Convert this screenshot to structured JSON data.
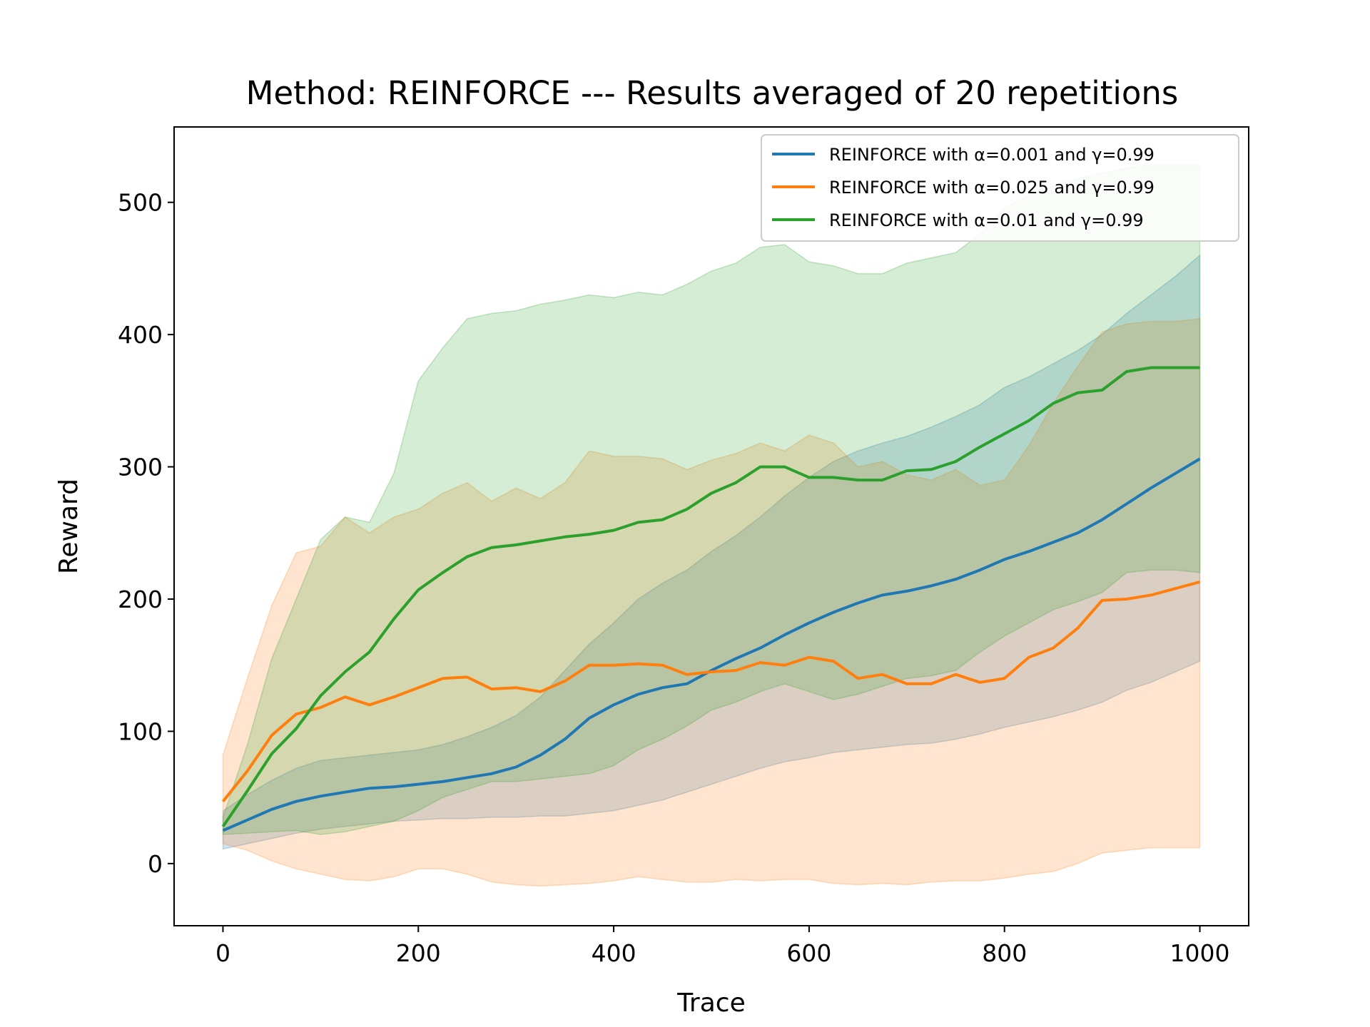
{
  "chart_data": {
    "type": "line",
    "title": "Method: REINFORCE --- Results averaged of 20 repetitions",
    "xlabel": "Trace",
    "ylabel": "Reward",
    "xlim": [
      -50,
      1050
    ],
    "ylim": [
      -47,
      557
    ],
    "xticks": [
      0,
      200,
      400,
      600,
      800,
      1000
    ],
    "yticks": [
      0,
      100,
      200,
      300,
      400,
      500
    ],
    "legend_position": "top-right",
    "series": [
      {
        "name": "REINFORCE with α=0.001 and γ=0.99",
        "color": "#1f77b4",
        "x": [
          0,
          25,
          50,
          75,
          100,
          125,
          150,
          175,
          200,
          225,
          250,
          275,
          300,
          325,
          350,
          375,
          400,
          425,
          450,
          475,
          500,
          525,
          550,
          575,
          600,
          625,
          650,
          675,
          700,
          725,
          750,
          775,
          800,
          825,
          850,
          875,
          900,
          925,
          950,
          975,
          1000
        ],
        "mean": [
          25,
          33,
          41,
          47,
          51,
          54,
          57,
          58,
          60,
          62,
          65,
          68,
          73,
          82,
          94,
          110,
          120,
          128,
          133,
          136,
          146,
          155,
          163,
          173,
          182,
          190,
          197,
          203,
          206,
          210,
          215,
          222,
          230,
          236,
          243,
          250,
          260,
          272,
          284,
          295,
          306
        ],
        "lower": [
          11,
          15,
          19,
          23,
          26,
          28,
          30,
          32,
          33,
          34,
          34,
          35,
          35,
          36,
          36,
          38,
          40,
          44,
          48,
          54,
          60,
          66,
          72,
          77,
          80,
          84,
          86,
          88,
          90,
          91,
          94,
          98,
          103,
          107,
          111,
          116,
          122,
          131,
          137,
          145,
          153
        ],
        "upper": [
          40,
          52,
          63,
          72,
          78,
          80,
          82,
          84,
          86,
          90,
          96,
          103,
          112,
          126,
          146,
          166,
          182,
          200,
          212,
          222,
          236,
          248,
          262,
          278,
          292,
          304,
          312,
          318,
          323,
          330,
          338,
          347,
          360,
          368,
          378,
          388,
          400,
          416,
          430,
          444,
          460
        ]
      },
      {
        "name": "REINFORCE with α=0.025 and γ=0.99",
        "color": "#ff7f0e",
        "x": [
          0,
          25,
          50,
          75,
          100,
          125,
          150,
          175,
          200,
          225,
          250,
          275,
          300,
          325,
          350,
          375,
          400,
          425,
          450,
          475,
          500,
          525,
          550,
          575,
          600,
          625,
          650,
          675,
          700,
          725,
          750,
          775,
          800,
          825,
          850,
          875,
          900,
          925,
          950,
          975,
          1000
        ],
        "mean": [
          47,
          70,
          97,
          113,
          118,
          126,
          120,
          126,
          133,
          140,
          141,
          132,
          133,
          130,
          138,
          150,
          150,
          151,
          150,
          143,
          145,
          146,
          152,
          150,
          156,
          153,
          140,
          143,
          136,
          136,
          143,
          137,
          140,
          156,
          163,
          178,
          199,
          200,
          203,
          208,
          213
        ],
        "lower": [
          15,
          10,
          2,
          -4,
          -8,
          -12,
          -13,
          -10,
          -4,
          -4,
          -8,
          -14,
          -16,
          -17,
          -16,
          -15,
          -13,
          -10,
          -12,
          -14,
          -14,
          -12,
          -13,
          -12,
          -12,
          -15,
          -16,
          -15,
          -16,
          -14,
          -13,
          -13,
          -11,
          -8,
          -6,
          0,
          8,
          10,
          12,
          12,
          12
        ],
        "upper": [
          82,
          140,
          195,
          235,
          240,
          262,
          250,
          262,
          268,
          280,
          288,
          274,
          284,
          276,
          288,
          312,
          308,
          308,
          306,
          298,
          305,
          310,
          318,
          312,
          324,
          318,
          300,
          304,
          294,
          290,
          298,
          286,
          290,
          316,
          348,
          376,
          402,
          408,
          410,
          410,
          412
        ]
      },
      {
        "name": "REINFORCE with α=0.01 and γ=0.99",
        "color": "#2ca02c",
        "x": [
          0,
          25,
          50,
          75,
          100,
          125,
          150,
          175,
          200,
          225,
          250,
          275,
          300,
          325,
          350,
          375,
          400,
          425,
          450,
          475,
          500,
          525,
          550,
          575,
          600,
          625,
          650,
          675,
          700,
          725,
          750,
          775,
          800,
          825,
          850,
          875,
          900,
          925,
          950,
          975,
          1000
        ],
        "mean": [
          28,
          55,
          83,
          102,
          127,
          145,
          160,
          185,
          207,
          220,
          232,
          239,
          241,
          244,
          247,
          249,
          252,
          258,
          260,
          268,
          280,
          288,
          300,
          300,
          292,
          292,
          290,
          290,
          297,
          298,
          304,
          315,
          325,
          335,
          348,
          356,
          358,
          372,
          375,
          375,
          375
        ],
        "lower": [
          22,
          23,
          24,
          25,
          22,
          24,
          28,
          32,
          40,
          50,
          56,
          62,
          62,
          64,
          66,
          68,
          74,
          86,
          94,
          104,
          116,
          122,
          130,
          136,
          130,
          124,
          128,
          134,
          140,
          142,
          146,
          160,
          172,
          182,
          192,
          198,
          205,
          220,
          222,
          222,
          220
        ],
        "upper": [
          35,
          90,
          155,
          200,
          245,
          262,
          258,
          295,
          365,
          390,
          412,
          416,
          418,
          423,
          426,
          430,
          428,
          432,
          430,
          438,
          448,
          454,
          466,
          468,
          455,
          452,
          446,
          446,
          454,
          458,
          462,
          476,
          496,
          505,
          512,
          518,
          522,
          526,
          528,
          528,
          528
        ]
      }
    ]
  }
}
